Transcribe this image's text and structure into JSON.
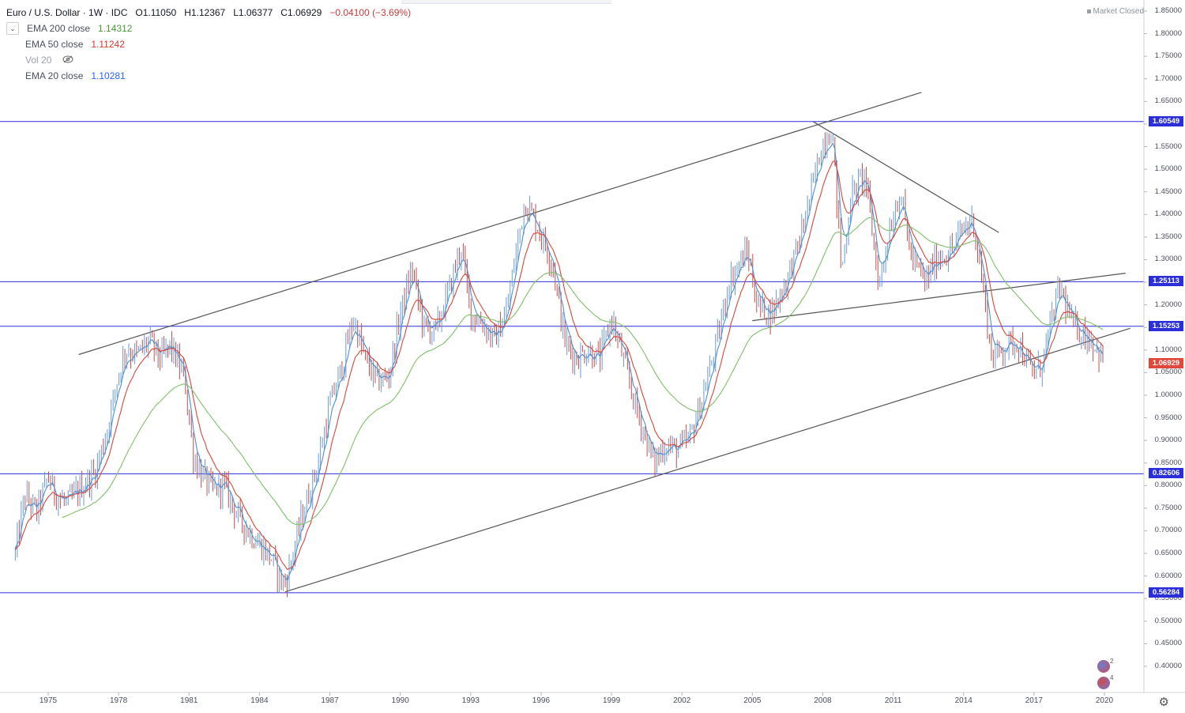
{
  "header": {
    "symbol_title": "Euro / U.S. Dollar · 1W · IDC",
    "open": "O1.11050",
    "high": "H1.12367",
    "low": "L1.06377",
    "close": "C1.06929",
    "change": "−0.04100 (−3.69%)"
  },
  "indicators": [
    {
      "name": "EMA 200 close",
      "value": "1.14312",
      "color": "#4c9a3a"
    },
    {
      "name": "EMA 50 close",
      "value": "1.11242",
      "color": "#d33a2c"
    },
    {
      "name": "Vol 20",
      "value": "",
      "color": "#9aa0aa"
    },
    {
      "name": "EMA 20 close",
      "value": "1.10281",
      "color": "#2962ff"
    }
  ],
  "market_status": "Market Closed",
  "price_axis": {
    "labels": [
      "1.85000",
      "1.80000",
      "1.75000",
      "1.70000",
      "1.65000",
      "1.60000",
      "1.55000",
      "1.50000",
      "1.45000",
      "1.40000",
      "1.35000",
      "1.30000",
      "1.25000",
      "1.20000",
      "1.15000",
      "1.10000",
      "1.05000",
      "1.00000",
      "0.95000",
      "0.90000",
      "0.85000",
      "0.80000",
      "0.75000",
      "0.70000",
      "0.65000",
      "0.60000",
      "0.55000",
      "0.50000",
      "0.45000",
      "0.40000"
    ]
  },
  "level_badges": [
    {
      "value": "1.60549",
      "color": "#2a2fd9"
    },
    {
      "value": "1.25113",
      "color": "#2a2fd9"
    },
    {
      "value": "1.15253",
      "color": "#2a2fd9"
    },
    {
      "value": "1.06929",
      "color": "#e0483c"
    },
    {
      "value": "0.82606",
      "color": "#2a2fd9"
    },
    {
      "value": "0.56284",
      "color": "#2a2fd9"
    }
  ],
  "time_axis": {
    "labels": [
      "1975",
      "1978",
      "1981",
      "1984",
      "1987",
      "1990",
      "1993",
      "1996",
      "1999",
      "2002",
      "2005",
      "2008",
      "2011",
      "2014",
      "2017",
      "2020"
    ]
  },
  "colors": {
    "price_up": "#6a9bd8",
    "price_down": "#c0504d",
    "ema20": "#4a90d9",
    "ema50": "#d9463a",
    "ema200": "#7fbf6a",
    "hline": "#2a2fd9",
    "trendline": "#555555"
  },
  "icons": {
    "settings": "gear-icon",
    "collapse": "chevron-down-icon",
    "visibility": "eye-off-icon"
  },
  "chart_data": {
    "type": "line",
    "title": "Euro / U.S. Dollar · 1W · IDC",
    "ylim": [
      0.38,
      1.87
    ],
    "xlim": [
      1973.5,
      2021.5
    ],
    "horizontal_levels": [
      1.60549,
      1.25113,
      1.15253,
      0.82606,
      0.56284
    ],
    "trendlines": [
      {
        "x": [
          1976.3,
          2012.2
        ],
        "y": [
          1.09,
          1.67
        ]
      },
      {
        "x": [
          1985.1,
          2021.1
        ],
        "y": [
          0.565,
          1.148
        ]
      },
      {
        "x": [
          2007.6,
          2015.5
        ],
        "y": [
          1.605,
          1.36
        ]
      },
      {
        "x": [
          2005.0,
          2020.9
        ],
        "y": [
          1.165,
          1.27
        ]
      }
    ],
    "series": [
      {
        "name": "EUR/USD",
        "x": [
          1973.6,
          1974.0,
          1974.5,
          1975.0,
          1975.3,
          1975.8,
          1976.5,
          1977.0,
          1977.5,
          1978.0,
          1978.3,
          1978.8,
          1979.3,
          1979.8,
          1980.2,
          1980.8,
          1981.2,
          1981.6,
          1982.0,
          1982.5,
          1983.0,
          1983.5,
          1984.0,
          1984.5,
          1985.0,
          1985.2,
          1985.8,
          1986.5,
          1987.0,
          1987.5,
          1988.0,
          1988.5,
          1989.0,
          1989.5,
          1990.0,
          1990.5,
          1991.0,
          1991.5,
          1992.0,
          1992.6,
          1993.0,
          1993.5,
          1994.0,
          1994.5,
          1995.3,
          1995.8,
          1996.5,
          1997.0,
          1997.5,
          1998.0,
          1998.5,
          1999.0,
          1999.5,
          2000.0,
          2000.8,
          2001.3,
          2001.8,
          2002.3,
          2002.8,
          2003.5,
          2004.0,
          2004.8,
          2005.2,
          2005.8,
          2006.5,
          2007.0,
          2007.5,
          2008.0,
          2008.4,
          2008.8,
          2009.2,
          2009.8,
          2010.4,
          2010.8,
          2011.3,
          2011.8,
          2012.4,
          2012.8,
          2013.5,
          2014.0,
          2014.4,
          2014.8,
          2015.2,
          2015.8,
          2016.3,
          2016.9,
          2017.3,
          2017.8,
          2018.1,
          2018.6,
          2019.0,
          2019.5,
          2020.0
        ],
        "y": [
          0.65,
          0.78,
          0.74,
          0.82,
          0.78,
          0.76,
          0.8,
          0.83,
          0.92,
          1.05,
          1.1,
          1.09,
          1.12,
          1.08,
          1.11,
          1.04,
          0.86,
          0.82,
          0.79,
          0.8,
          0.74,
          0.7,
          0.67,
          0.64,
          0.58,
          0.6,
          0.73,
          0.85,
          0.98,
          1.06,
          1.17,
          1.08,
          1.03,
          1.04,
          1.18,
          1.28,
          1.15,
          1.14,
          1.22,
          1.33,
          1.18,
          1.16,
          1.12,
          1.18,
          1.43,
          1.38,
          1.29,
          1.12,
          1.08,
          1.1,
          1.08,
          1.17,
          1.08,
          0.98,
          0.85,
          0.89,
          0.88,
          0.9,
          0.98,
          1.12,
          1.25,
          1.32,
          1.2,
          1.18,
          1.26,
          1.34,
          1.45,
          1.56,
          1.59,
          1.27,
          1.44,
          1.49,
          1.24,
          1.36,
          1.45,
          1.3,
          1.25,
          1.3,
          1.32,
          1.37,
          1.39,
          1.25,
          1.08,
          1.11,
          1.12,
          1.05,
          1.06,
          1.18,
          1.24,
          1.16,
          1.14,
          1.12,
          1.07
        ]
      },
      {
        "name": "EMA 20 close",
        "color": "#4a90d9"
      },
      {
        "name": "EMA 50 close",
        "color": "#d9463a"
      },
      {
        "name": "EMA 200 close",
        "color": "#7fbf6a"
      }
    ]
  }
}
